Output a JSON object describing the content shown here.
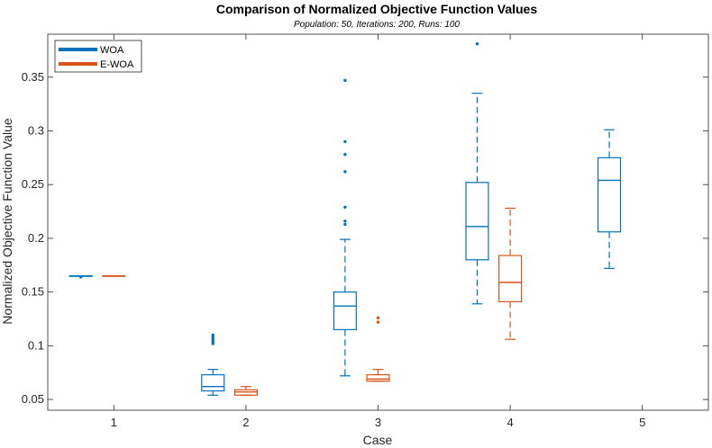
{
  "colors": {
    "woa": "#0072BD",
    "ewoa": "#D95319",
    "axis": "#262626"
  },
  "chart_data": {
    "type": "box",
    "title": "Comparison of Normalized Objective Function Values",
    "subtitle": "Population: 50, Iterations: 200, Runs: 100",
    "xlabel": "Case",
    "ylabel": "Normalized Objective Function Value",
    "xlim": [
      0.5,
      5.5
    ],
    "ylim": [
      0.04,
      0.39
    ],
    "xticks": [
      1,
      2,
      3,
      4,
      5
    ],
    "xtick_labels": [
      "1",
      "2",
      "3",
      "4",
      "5"
    ],
    "yticks": [
      0.05,
      0.1,
      0.15,
      0.2,
      0.25,
      0.3,
      0.35
    ],
    "ytick_labels": [
      "0.05",
      "0.1",
      "0.15",
      "0.2",
      "0.25",
      "0.3",
      "0.35"
    ],
    "grid": false,
    "legend_position": "top-left",
    "series": [
      {
        "name": "WOA",
        "color": "#0072BD",
        "offset": -0.25,
        "boxes": [
          {
            "case": 1,
            "whisker_low": 0.165,
            "q1": 0.165,
            "median": 0.165,
            "q3": 0.165,
            "whisker_high": 0.165,
            "outliers": [
              0.164
            ]
          },
          {
            "case": 2,
            "whisker_low": 0.054,
            "q1": 0.058,
            "median": 0.062,
            "q3": 0.073,
            "whisker_high": 0.078,
            "outliers": [
              0.102,
              0.104,
              0.106,
              0.108,
              0.11
            ]
          },
          {
            "case": 3,
            "whisker_low": 0.072,
            "q1": 0.115,
            "median": 0.137,
            "q3": 0.15,
            "whisker_high": 0.199,
            "outliers": [
              0.213,
              0.216,
              0.229,
              0.262,
              0.278,
              0.29,
              0.347
            ]
          },
          {
            "case": 4,
            "whisker_low": 0.139,
            "q1": 0.18,
            "median": 0.211,
            "q3": 0.252,
            "whisker_high": 0.335,
            "outliers": [
              0.381
            ]
          },
          {
            "case": 5,
            "whisker_low": 0.172,
            "q1": 0.206,
            "median": 0.254,
            "q3": 0.275,
            "whisker_high": 0.301,
            "outliers": []
          }
        ]
      },
      {
        "name": "E-WOA",
        "color": "#D95319",
        "offset": 0.0,
        "boxes": [
          {
            "case": 1,
            "whisker_low": 0.165,
            "q1": 0.165,
            "median": 0.165,
            "q3": 0.165,
            "whisker_high": 0.165,
            "outliers": []
          },
          {
            "case": 2,
            "whisker_low": 0.054,
            "q1": 0.054,
            "median": 0.057,
            "q3": 0.059,
            "whisker_high": 0.062,
            "outliers": []
          },
          {
            "case": 3,
            "whisker_low": 0.067,
            "q1": 0.067,
            "median": 0.069,
            "q3": 0.073,
            "whisker_high": 0.078,
            "outliers": [
              0.122,
              0.126
            ]
          },
          {
            "case": 4,
            "whisker_low": 0.106,
            "q1": 0.141,
            "median": 0.159,
            "q3": 0.184,
            "whisker_high": 0.228,
            "outliers": []
          }
        ]
      }
    ]
  }
}
